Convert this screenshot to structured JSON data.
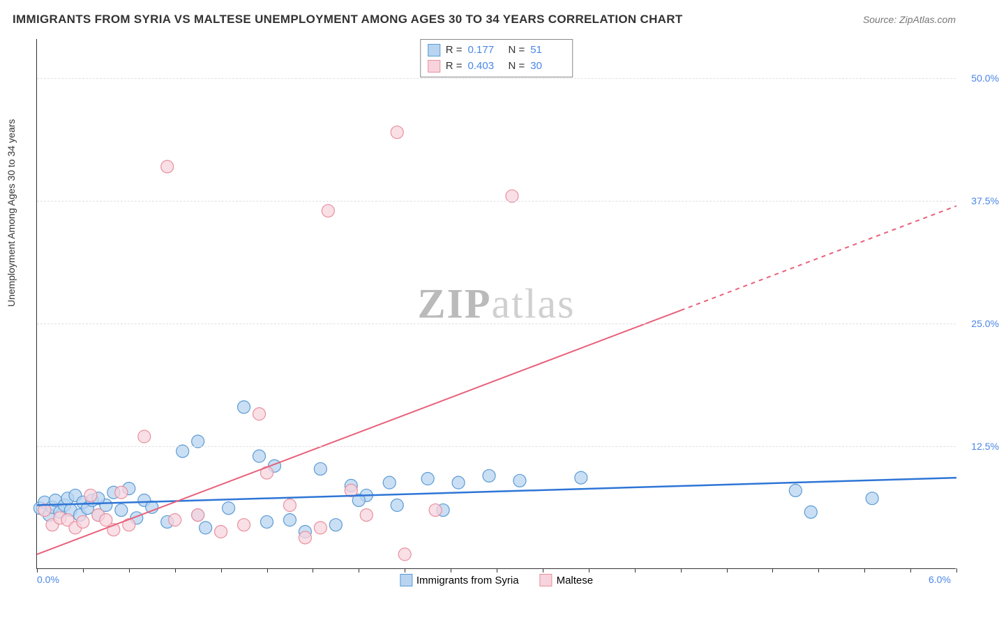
{
  "title": "IMMIGRANTS FROM SYRIA VS MALTESE UNEMPLOYMENT AMONG AGES 30 TO 34 YEARS CORRELATION CHART",
  "source": "Source: ZipAtlas.com",
  "ylabel": "Unemployment Among Ages 30 to 34 years",
  "watermark_a": "ZIP",
  "watermark_b": "atlas",
  "chart": {
    "type": "scatter-with-regression",
    "background_color": "#ffffff",
    "grid_color": "#e0e0e0",
    "axis_color": "#333333",
    "xlim": [
      0.0,
      6.0
    ],
    "ylim": [
      0.0,
      54.0
    ],
    "x_ticks_minor": [
      0.0,
      0.3,
      0.6,
      0.9,
      1.2,
      1.5,
      1.8,
      2.1,
      2.4,
      2.7,
      3.0,
      3.3,
      3.6,
      3.9,
      4.2,
      4.5,
      4.8,
      5.1,
      5.4,
      5.7,
      6.0
    ],
    "x_tick_labels": [
      {
        "x": 0.0,
        "label": "0.0%"
      },
      {
        "x": 6.0,
        "label": "6.0%"
      }
    ],
    "y_grid": [
      12.5,
      25.0,
      37.5,
      50.0
    ],
    "y_tick_labels": [
      {
        "y": 12.5,
        "label": "12.5%"
      },
      {
        "y": 25.0,
        "label": "25.0%"
      },
      {
        "y": 37.5,
        "label": "37.5%"
      },
      {
        "y": 50.0,
        "label": "50.0%"
      }
    ],
    "label_color": "#4a86e8",
    "series": [
      {
        "name": "Immigrants from Syria",
        "legend_name": "Immigrants from Syria",
        "marker_fill": "#b8d4f0",
        "marker_stroke": "#5b9bd5",
        "marker_radius": 9,
        "line_color": "#2e75d6",
        "line_width": 2.5,
        "R": "0.177",
        "N": "51",
        "regression": {
          "x1": 0.0,
          "y1": 6.5,
          "x2": 6.0,
          "y2": 9.3,
          "dashed_from_x": null
        },
        "points": [
          [
            0.02,
            6.2
          ],
          [
            0.05,
            6.8
          ],
          [
            0.08,
            5.5
          ],
          [
            0.1,
            6.3
          ],
          [
            0.12,
            7.0
          ],
          [
            0.15,
            5.8
          ],
          [
            0.18,
            6.5
          ],
          [
            0.2,
            7.2
          ],
          [
            0.22,
            6.0
          ],
          [
            0.25,
            7.5
          ],
          [
            0.28,
            5.5
          ],
          [
            0.3,
            6.8
          ],
          [
            0.33,
            6.2
          ],
          [
            0.36,
            7.0
          ],
          [
            0.4,
            5.5
          ],
          [
            0.45,
            6.5
          ],
          [
            0.5,
            7.8
          ],
          [
            0.55,
            6.0
          ],
          [
            0.6,
            8.2
          ],
          [
            0.65,
            5.2
          ],
          [
            0.7,
            7.0
          ],
          [
            0.75,
            6.3
          ],
          [
            0.85,
            4.8
          ],
          [
            0.95,
            12.0
          ],
          [
            1.05,
            5.5
          ],
          [
            1.1,
            4.2
          ],
          [
            1.05,
            13.0
          ],
          [
            1.25,
            6.2
          ],
          [
            1.35,
            16.5
          ],
          [
            1.45,
            11.5
          ],
          [
            1.5,
            4.8
          ],
          [
            1.55,
            10.5
          ],
          [
            1.65,
            5.0
          ],
          [
            1.75,
            3.8
          ],
          [
            1.85,
            10.2
          ],
          [
            1.95,
            4.5
          ],
          [
            2.05,
            8.5
          ],
          [
            2.15,
            7.5
          ],
          [
            2.1,
            7.0
          ],
          [
            2.3,
            8.8
          ],
          [
            2.35,
            6.5
          ],
          [
            2.55,
            9.2
          ],
          [
            2.75,
            8.8
          ],
          [
            2.65,
            6.0
          ],
          [
            2.95,
            9.5
          ],
          [
            3.15,
            9.0
          ],
          [
            3.55,
            9.3
          ],
          [
            4.95,
            8.0
          ],
          [
            5.05,
            5.8
          ],
          [
            5.45,
            7.2
          ],
          [
            0.4,
            7.2
          ]
        ]
      },
      {
        "name": "Maltese",
        "legend_name": "Maltese",
        "marker_fill": "#f7d4dd",
        "marker_stroke": "#e8909e",
        "marker_radius": 9,
        "line_color": "#e8607a",
        "line_width": 2,
        "R": "0.403",
        "N": "30",
        "regression": {
          "x1": 0.0,
          "y1": 1.5,
          "x2": 6.0,
          "y2": 37.0,
          "dashed_from_x": 4.2
        },
        "points": [
          [
            0.05,
            6.0
          ],
          [
            0.1,
            4.5
          ],
          [
            0.15,
            5.2
          ],
          [
            0.2,
            5.0
          ],
          [
            0.25,
            4.2
          ],
          [
            0.3,
            4.8
          ],
          [
            0.35,
            7.5
          ],
          [
            0.4,
            5.5
          ],
          [
            0.45,
            5.0
          ],
          [
            0.5,
            4.0
          ],
          [
            0.55,
            7.8
          ],
          [
            0.6,
            4.5
          ],
          [
            0.7,
            13.5
          ],
          [
            0.85,
            41.0
          ],
          [
            0.9,
            5.0
          ],
          [
            1.05,
            5.5
          ],
          [
            1.2,
            3.8
          ],
          [
            1.35,
            4.5
          ],
          [
            1.45,
            15.8
          ],
          [
            1.5,
            9.8
          ],
          [
            1.65,
            6.5
          ],
          [
            1.75,
            3.2
          ],
          [
            1.85,
            4.2
          ],
          [
            1.9,
            36.5
          ],
          [
            2.05,
            8.0
          ],
          [
            2.15,
            5.5
          ],
          [
            2.35,
            44.5
          ],
          [
            2.4,
            1.5
          ],
          [
            2.6,
            6.0
          ],
          [
            3.1,
            38.0
          ]
        ]
      }
    ]
  },
  "stats_legend": {
    "R_label": "R  =",
    "N_label": "N  ="
  }
}
